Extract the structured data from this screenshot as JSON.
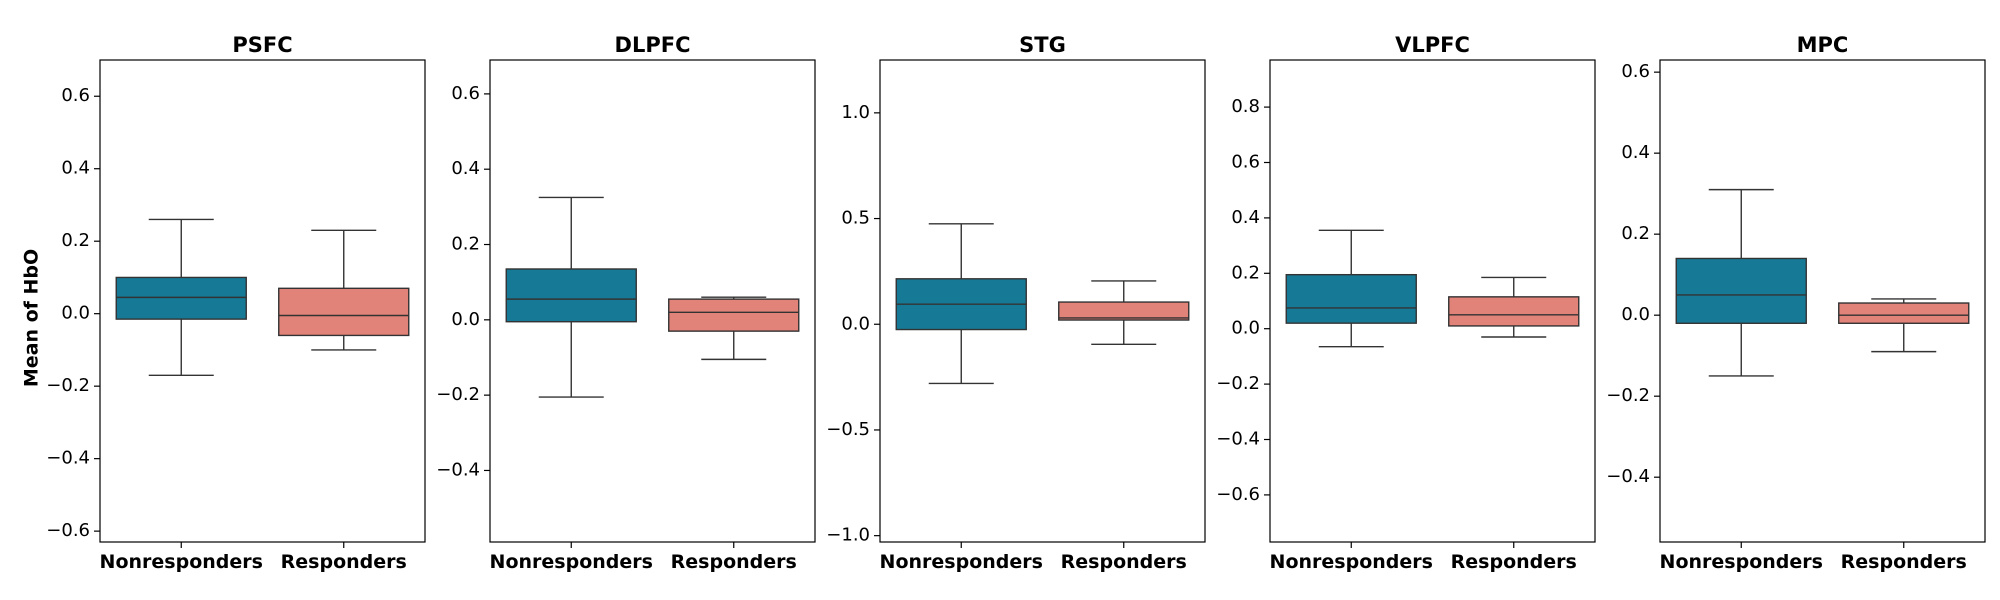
{
  "chart_data": [
    {
      "type": "box",
      "title": "PSFC",
      "ylabel": "Mean of HbO",
      "categories": [
        "Nonresponders",
        "Responders"
      ],
      "ylim": [
        -0.63,
        0.7
      ],
      "yticks": [
        -0.6,
        -0.4,
        -0.2,
        0.0,
        0.2,
        0.4,
        0.6
      ],
      "yticklabels": [
        "−0.6",
        "−0.4",
        "−0.2",
        "0.0",
        "0.2",
        "0.4",
        "0.6"
      ],
      "boxes": [
        {
          "whislo": -0.17,
          "q1": -0.015,
          "med": 0.045,
          "q3": 0.1,
          "whishi": 0.26
        },
        {
          "whislo": -0.1,
          "q1": -0.06,
          "med": -0.005,
          "q3": 0.07,
          "whishi": 0.23
        }
      ]
    },
    {
      "type": "box",
      "title": "DLPFC",
      "categories": [
        "Nonresponders",
        "Responders"
      ],
      "ylim": [
        -0.59,
        0.69
      ],
      "yticks": [
        -0.4,
        -0.2,
        0.0,
        0.2,
        0.4,
        0.6
      ],
      "yticklabels": [
        "−0.4",
        "−0.2",
        "0.0",
        "0.2",
        "0.4",
        "0.6"
      ],
      "boxes": [
        {
          "whislo": -0.205,
          "q1": -0.005,
          "med": 0.055,
          "q3": 0.135,
          "whishi": 0.325
        },
        {
          "whislo": -0.105,
          "q1": -0.03,
          "med": 0.02,
          "q3": 0.055,
          "whishi": 0.06
        }
      ]
    },
    {
      "type": "box",
      "title": "STG",
      "categories": [
        "Nonresponders",
        "Responders"
      ],
      "ylim": [
        -1.03,
        1.25
      ],
      "yticks": [
        -1.0,
        -0.5,
        0.0,
        0.5,
        1.0
      ],
      "yticklabels": [
        "−1.0",
        "−0.5",
        "0.0",
        "0.5",
        "1.0"
      ],
      "boxes": [
        {
          "whislo": -0.28,
          "q1": -0.025,
          "med": 0.095,
          "q3": 0.215,
          "whishi": 0.475
        },
        {
          "whislo": -0.095,
          "q1": 0.02,
          "med": 0.03,
          "q3": 0.105,
          "whishi": 0.205
        }
      ]
    },
    {
      "type": "box",
      "title": "VLPFC",
      "categories": [
        "Nonresponders",
        "Responders"
      ],
      "ylim": [
        -0.77,
        0.97
      ],
      "yticks": [
        -0.6,
        -0.4,
        -0.2,
        0.0,
        0.2,
        0.4,
        0.6,
        0.8
      ],
      "yticklabels": [
        "−0.6",
        "−0.4",
        "−0.2",
        "0.0",
        "0.2",
        "0.4",
        "0.6",
        "0.8"
      ],
      "boxes": [
        {
          "whislo": -0.065,
          "q1": 0.02,
          "med": 0.075,
          "q3": 0.195,
          "whishi": 0.355
        },
        {
          "whislo": -0.03,
          "q1": 0.01,
          "med": 0.05,
          "q3": 0.115,
          "whishi": 0.185
        }
      ]
    },
    {
      "type": "box",
      "title": "MPC",
      "categories": [
        "Nonresponders",
        "Responders"
      ],
      "ylim": [
        -0.56,
        0.63
      ],
      "yticks": [
        -0.4,
        -0.2,
        0.0,
        0.2,
        0.4,
        0.6
      ],
      "yticklabels": [
        "−0.4",
        "−0.2",
        "0.0",
        "0.2",
        "0.4",
        "0.6"
      ],
      "boxes": [
        {
          "whislo": -0.15,
          "q1": -0.02,
          "med": 0.05,
          "q3": 0.14,
          "whishi": 0.31
        },
        {
          "whislo": -0.09,
          "q1": -0.02,
          "med": 0.0,
          "q3": 0.03,
          "whishi": 0.04
        }
      ]
    }
  ],
  "colors": {
    "Nonresponders": "#167a96",
    "Responders": "#e2837a"
  }
}
